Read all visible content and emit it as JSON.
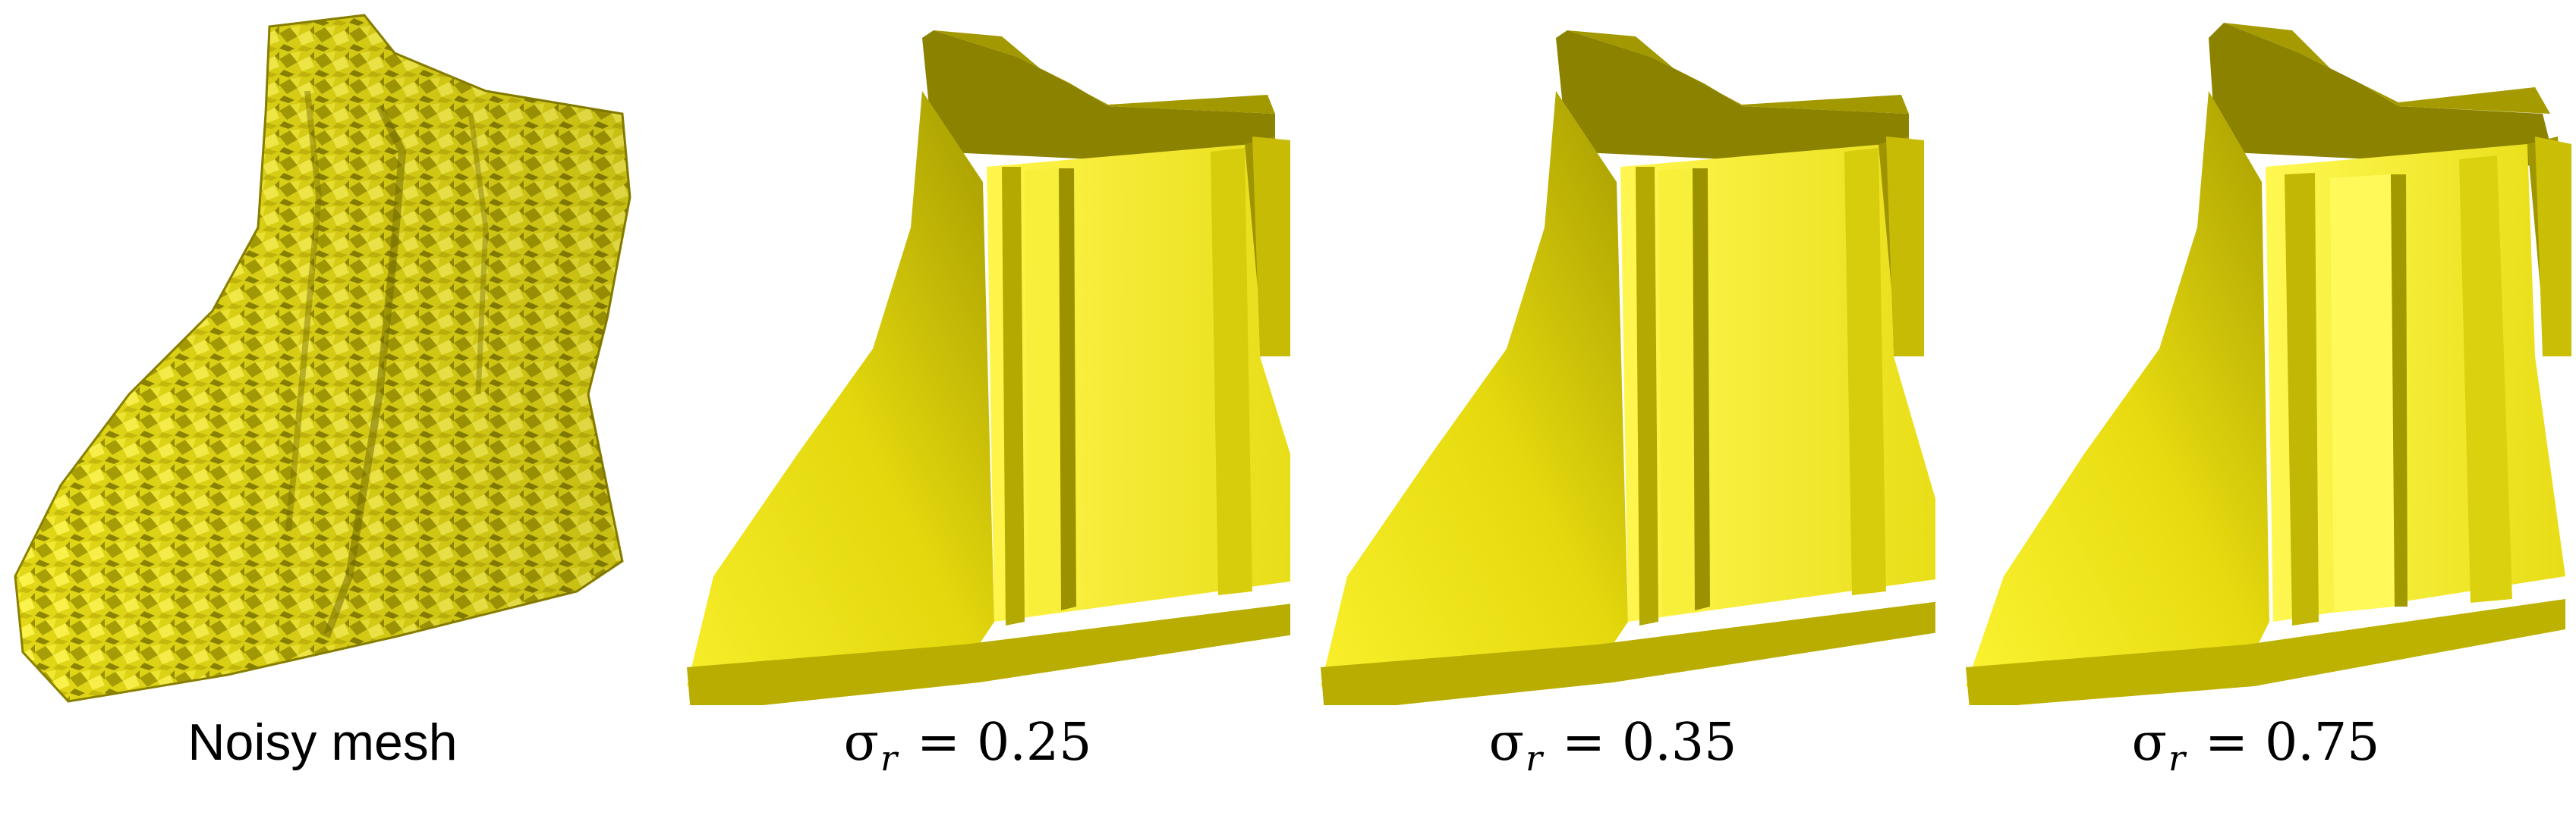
{
  "colors": {
    "mesh_base": "#e6dc12",
    "mesh_light": "#fff64a",
    "mesh_mid": "#d2c50a",
    "mesh_dark": "#8f8500",
    "mesh_deep": "#6e6500"
  },
  "panels": [
    {
      "caption": "Noisy mesh"
    },
    {
      "symbol": "σ",
      "subscript": "r",
      "equals": "=",
      "value": "0.25"
    },
    {
      "symbol": "σ",
      "subscript": "r",
      "equals": "=",
      "value": "0.35"
    },
    {
      "symbol": "σ",
      "subscript": "r",
      "equals": "=",
      "value": "0.75"
    }
  ]
}
